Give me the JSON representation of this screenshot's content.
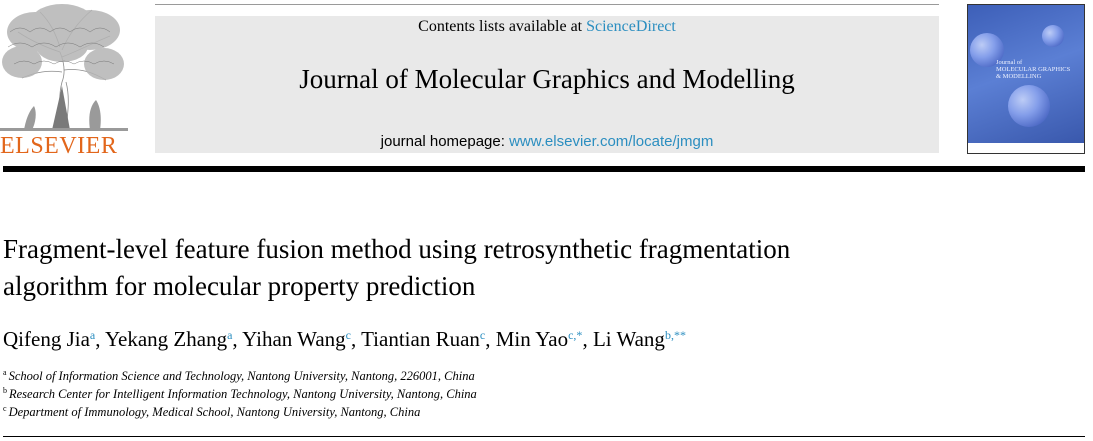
{
  "publisher": {
    "name": "ELSEVIER"
  },
  "masthead": {
    "contents_prefix": "Contents lists available at ",
    "contents_link": "ScienceDirect",
    "journal_title": "Journal of Molecular Graphics and Modelling",
    "homepage_prefix": "journal homepage: ",
    "homepage_link": "www.elsevier.com/locate/jmgm"
  },
  "cover": {
    "title_lines": [
      "Journal of",
      "MOLECULAR GRAPHICS",
      "& MODELLING"
    ]
  },
  "article": {
    "title_line1": "Fragment-level feature fusion method using retrosynthetic fragmentation",
    "title_line2": "algorithm for molecular property prediction",
    "authors": [
      {
        "name": "Qifeng Jia",
        "sup": "a",
        "sep": ", "
      },
      {
        "name": "Yekang Zhang",
        "sup": "a",
        "sep": ", "
      },
      {
        "name": "Yihan Wang",
        "sup": "c",
        "sep": ", "
      },
      {
        "name": "Tiantian Ruan",
        "sup": "c",
        "sep": ", "
      },
      {
        "name": "Min Yao",
        "sup": "c,*",
        "sep": ", "
      },
      {
        "name": "Li Wang",
        "sup": "b,**",
        "sep": ""
      }
    ],
    "affiliations": [
      {
        "key": "a",
        "text": "School of Information Science and Technology, Nantong University, Nantong, 226001, China"
      },
      {
        "key": "b",
        "text": "Research Center for Intelligent Information Technology, Nantong University, Nantong, China"
      },
      {
        "key": "c",
        "text": "Department of Immunology, Medical School, Nantong University, Nantong, China"
      }
    ]
  }
}
